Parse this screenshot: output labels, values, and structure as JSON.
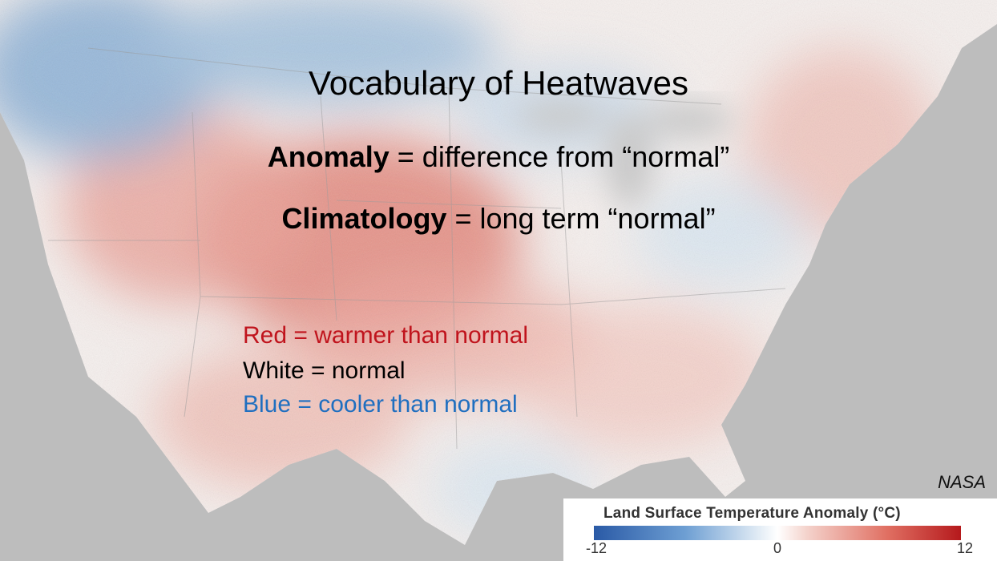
{
  "slide": {
    "title": "Vocabulary of Heatwaves",
    "definitions": [
      {
        "term": "Anomaly",
        "text": " = difference from “normal”"
      },
      {
        "term": "Climatology",
        "text": " = long term “normal”"
      }
    ],
    "legend": {
      "red": "Red = warmer than normal",
      "white": "White = normal",
      "blue": "Blue = cooler than normal"
    },
    "credit": "NASA"
  },
  "colorbar": {
    "title": "Land Surface Temperature Anomaly (°C)",
    "min_label": "-12",
    "mid_label": "0",
    "max_label": "12"
  },
  "colors": {
    "warm": "#c0141d",
    "cool": "#1f6fc0",
    "ocean": "#bdbdbd"
  }
}
